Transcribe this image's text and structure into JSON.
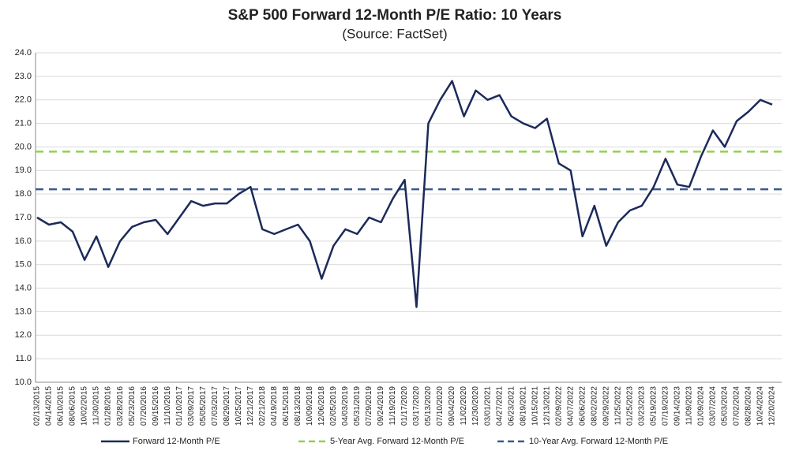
{
  "chart_data": {
    "type": "line",
    "title": "S&P 500 Forward 12-Month P/E Ratio: 10 Years",
    "subtitle": "(Source: FactSet)",
    "categories": [
      "02/13/2015",
      "04/14/2015",
      "06/10/2015",
      "08/06/2015",
      "10/02/2015",
      "11/30/2015",
      "01/28/2016",
      "03/28/2016",
      "05/23/2016",
      "07/20/2016",
      "09/15/2016",
      "11/10/2016",
      "01/10/2017",
      "03/09/2017",
      "05/05/2017",
      "07/03/2017",
      "08/29/2017",
      "10/25/2017",
      "12/21/2017",
      "02/21/2018",
      "04/19/2018",
      "06/15/2018",
      "08/13/2018",
      "10/09/2018",
      "12/06/2018",
      "02/05/2019",
      "04/03/2019",
      "05/31/2019",
      "07/29/2019",
      "09/24/2019",
      "11/19/2019",
      "01/17/2020",
      "03/17/2020",
      "05/13/2020",
      "07/10/2020",
      "09/04/2020",
      "11/02/2020",
      "12/30/2020",
      "03/01/2021",
      "04/27/2021",
      "06/23/2021",
      "08/19/2021",
      "10/15/2021",
      "12/13/2021",
      "02/09/2022",
      "04/07/2022",
      "06/06/2022",
      "08/02/2022",
      "09/29/2022",
      "11/25/2022",
      "01/25/2023",
      "03/23/2023",
      "05/19/2023",
      "07/19/2023",
      "09/14/2023",
      "11/09/2023",
      "01/09/2024",
      "03/07/2024",
      "05/03/2024",
      "07/02/2024",
      "08/28/2024",
      "10/24/2024",
      "12/20/2024"
    ],
    "series": [
      {
        "name": "Forward 12-Month P/E",
        "color": "#1c2a5a",
        "values": [
          17.0,
          16.7,
          16.8,
          16.4,
          15.2,
          16.2,
          14.9,
          16.0,
          16.6,
          16.8,
          16.9,
          16.3,
          17.0,
          17.7,
          17.5,
          17.6,
          17.6,
          18.0,
          18.3,
          16.5,
          16.3,
          16.5,
          16.7,
          16.0,
          14.4,
          15.8,
          16.5,
          16.3,
          17.0,
          16.8,
          17.8,
          18.6,
          13.2,
          21.0,
          22.0,
          22.8,
          21.3,
          22.4,
          22.0,
          22.2,
          21.3,
          21.0,
          20.8,
          21.2,
          19.3,
          19.0,
          16.2,
          17.5,
          15.8,
          16.8,
          17.3,
          17.5,
          18.3,
          19.5,
          18.4,
          18.3,
          19.6,
          20.7,
          20.0,
          21.1,
          21.5,
          22.0,
          21.8
        ]
      }
    ],
    "reference_lines": [
      {
        "name": "5-Year Avg. Forward 12-Month P/E",
        "color": "#92d050",
        "value": 19.8
      },
      {
        "name": "10-Year Avg. Forward 12-Month P/E",
        "color": "#3b5a8c",
        "value": 18.2
      }
    ],
    "ylim": [
      10,
      24
    ],
    "yticks": [
      {
        "value": 10,
        "label": "10.0"
      },
      {
        "value": 11,
        "label": "11.0"
      },
      {
        "value": 12,
        "label": "12.0"
      },
      {
        "value": 13,
        "label": "13.0"
      },
      {
        "value": 14,
        "label": "14.0"
      },
      {
        "value": 15,
        "label": "15.0"
      },
      {
        "value": 16,
        "label": "16.0"
      },
      {
        "value": 17,
        "label": "17.0"
      },
      {
        "value": 18,
        "label": "18.0"
      },
      {
        "value": 19,
        "label": "19.0"
      },
      {
        "value": 20,
        "label": "20.0"
      },
      {
        "value": 21,
        "label": "21.0"
      },
      {
        "value": 22,
        "label": "22.0"
      },
      {
        "value": 23,
        "label": "23.0"
      },
      {
        "value": 24,
        "label": "24.0"
      }
    ],
    "grid": true
  }
}
